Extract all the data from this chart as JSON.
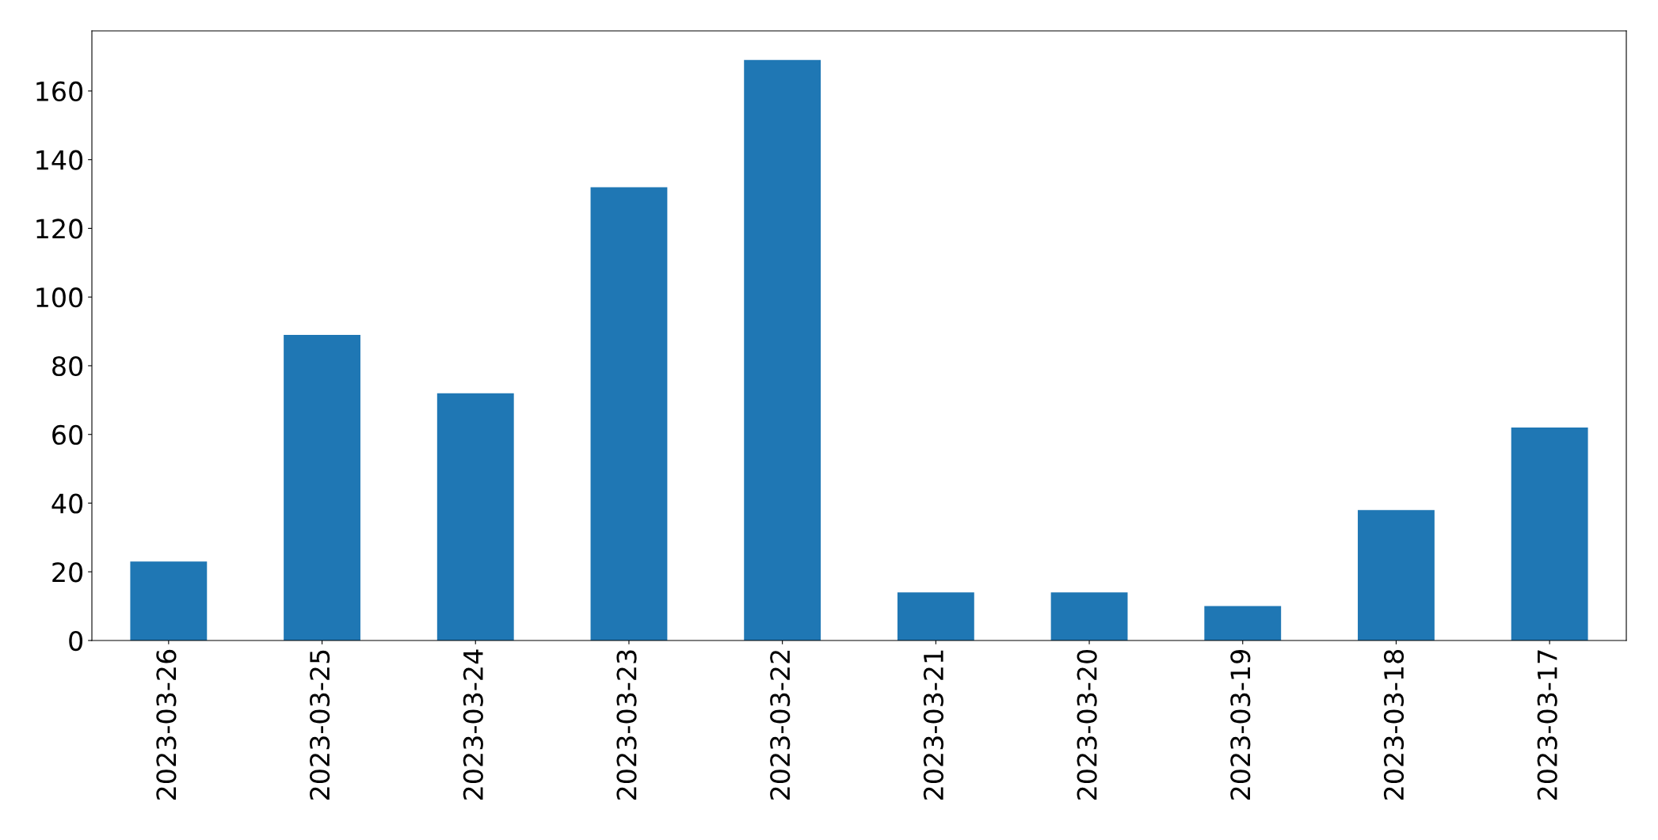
{
  "chart_data": {
    "type": "bar",
    "categories": [
      "2023-03-26",
      "2023-03-25",
      "2023-03-24",
      "2023-03-23",
      "2023-03-22",
      "2023-03-21",
      "2023-03-20",
      "2023-03-19",
      "2023-03-18",
      "2023-03-17"
    ],
    "values": [
      23,
      89,
      72,
      132,
      169,
      14,
      14,
      10,
      38,
      62
    ],
    "color": "#1f77b4",
    "ylim": [
      0,
      177.5
    ],
    "yticks": [
      0,
      20,
      40,
      60,
      80,
      100,
      120,
      140,
      160
    ],
    "grid": false
  }
}
